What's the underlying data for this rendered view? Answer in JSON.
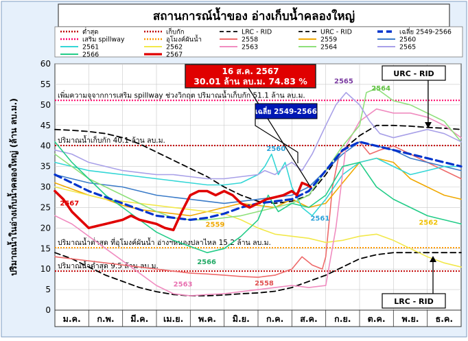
{
  "chart_data": {
    "type": "line",
    "title": "สถานการณ์น้ำของ อ่างเก็บน้ำคลองใหญ่",
    "ylabel": "ปริมาณน้ำในอ่างเก็บน้ำคลองใหญ่ (ล้าน ลบ.ม.)",
    "xlabel": "",
    "ylim": [
      0,
      60
    ],
    "yticks": [
      0,
      5,
      10,
      15,
      20,
      25,
      30,
      35,
      40,
      45,
      50,
      55,
      60
    ],
    "categories": [
      "ม.ค.",
      "ก.พ.",
      "มี.ค.",
      "เม.ย.",
      "พ.ค.",
      "มิ.ย.",
      "ก.ค.",
      "ส.ค.",
      "ก.ย.",
      "ต.ค.",
      "พ.ย.",
      "ธ.ค."
    ],
    "grid": true,
    "legend_position": "top",
    "legend": [
      {
        "label": "ต่ำสุด",
        "color": "#c00000",
        "style": "dotted"
      },
      {
        "label": "เก็บกัก",
        "color": "#c00000",
        "style": "dotted"
      },
      {
        "label": "LRC - RID",
        "color": "#000000",
        "style": "dashed"
      },
      {
        "label": "URC - RID",
        "color": "#000000",
        "style": "dashed"
      },
      {
        "label": "เฉลี่ย 2549-2566",
        "color": "#0033cc",
        "style": "dashed-thick"
      },
      {
        "label": "เสริม spillway",
        "color": "#ff0066",
        "style": "dotted"
      },
      {
        "label": "อุโมงค์ผันน้ำ",
        "color": "#ff9900",
        "style": "dotted"
      },
      {
        "label": "2558",
        "color": "#ee6a6a",
        "style": "solid"
      },
      {
        "label": "2559",
        "color": "#f0a800",
        "style": "solid"
      },
      {
        "label": "2560",
        "color": "#3a7bc8",
        "style": "solid"
      },
      {
        "label": "2561",
        "color": "#33d6d6",
        "style": "solid"
      },
      {
        "label": "2562",
        "color": "#f2e84a",
        "style": "solid"
      },
      {
        "label": "2563",
        "color": "#f08cc0",
        "style": "solid"
      },
      {
        "label": "2564",
        "color": "#8ee07a",
        "style": "solid"
      },
      {
        "label": "2565",
        "color": "#a8a0e8",
        "style": "solid"
      },
      {
        "label": "2566",
        "color": "#22cc88",
        "style": "solid"
      },
      {
        "label": "2567",
        "color": "#e00000",
        "style": "solid-thick"
      }
    ],
    "reference_lines": [
      {
        "value": 51.1,
        "label": "เพิ่มความจุจากการเสริม spillway ช่วงวิกฤต ปริมาณน้ำเก็บกัก 51.1 ล้าน ลบ.ม.",
        "color": "#ff0066"
      },
      {
        "value": 40.1,
        "label": "ปริมาณน้ำเก็บกัก 40.1 ล้าน ลบ.ม.",
        "color": "#c00000"
      },
      {
        "value": 15.2,
        "label": "ปริมาณน้ำต่ำสุด ที่อุโมงค์ผันน้ำ อ่างฯหนองปลาไหล 15.2 ล้าน ลบ.ม.",
        "color": "#ff9900"
      },
      {
        "value": 9.5,
        "label": "ปริมาณน้ำต่ำสุด 9.5 ล้าน ลบ.ม.",
        "color": "#c00000"
      }
    ],
    "series": [
      {
        "name": "URC - RID",
        "color": "#000000",
        "dash": "8,5",
        "width": 1.8,
        "x": [
          0,
          0.5,
          1,
          1.5,
          2,
          2.5,
          3,
          3.5,
          4,
          4.5,
          5,
          5.5,
          6,
          6.5,
          7,
          7.5,
          8,
          8.5,
          9,
          9.5,
          10,
          10.5,
          11,
          11.5,
          12
        ],
        "y": [
          44,
          43.8,
          43.5,
          43,
          42,
          40.5,
          38.5,
          36.5,
          34.5,
          32.5,
          30,
          28,
          26.5,
          26,
          26.5,
          28,
          33,
          39,
          42.5,
          45,
          45,
          44.8,
          44.5,
          44.3,
          44
        ]
      },
      {
        "name": "LRC - RID",
        "color": "#000000",
        "dash": "8,5",
        "width": 1.8,
        "x": [
          0,
          0.5,
          1,
          1.5,
          2,
          2.5,
          3,
          3.5,
          4,
          4.5,
          5,
          5.5,
          6,
          6.5,
          7,
          7.5,
          8,
          8.5,
          9,
          9.5,
          10,
          10.5,
          11,
          11.5,
          12
        ],
        "y": [
          14,
          12.5,
          10.5,
          8.5,
          7,
          5.5,
          4.5,
          3.8,
          3.5,
          3.5,
          3.7,
          4,
          4.2,
          4.6,
          5.5,
          7,
          8.5,
          10.5,
          12.5,
          13.5,
          14,
          14,
          14,
          14,
          14
        ]
      },
      {
        "name": "2558",
        "color": "#ee6a6a",
        "width": 1.6,
        "x": [
          0,
          0.5,
          1,
          1.5,
          2,
          2.5,
          3,
          3.5,
          4,
          4.5,
          5,
          5.5,
          6,
          6.5,
          7,
          7.3,
          7.6,
          7.9,
          8,
          8.2,
          8.4,
          8.7,
          9,
          9.3,
          9.6,
          10,
          10.5,
          11,
          11.5,
          12
        ],
        "y": [
          13,
          12.5,
          12,
          11.5,
          11,
          10.5,
          10,
          9.5,
          9,
          8.8,
          8.5,
          8.2,
          8,
          8.5,
          10,
          13,
          11,
          10,
          13,
          30,
          38,
          40,
          41,
          38,
          39,
          40,
          38,
          36,
          34,
          32
        ]
      },
      {
        "name": "2559",
        "color": "#f0a800",
        "width": 1.6,
        "x": [
          0,
          0.5,
          1,
          1.5,
          2,
          2.5,
          3,
          3.5,
          4,
          4.5,
          5,
          5.5,
          6,
          6.5,
          7,
          7.5,
          8,
          8.5,
          9,
          9.5,
          10,
          10.5,
          11,
          11.5,
          12
        ],
        "y": [
          31,
          29.5,
          28,
          27,
          25.5,
          24.5,
          24,
          23.5,
          23,
          24,
          25,
          26,
          25.5,
          25,
          27,
          25,
          26,
          31,
          36,
          37,
          36,
          32,
          30,
          28,
          27
        ]
      },
      {
        "name": "2560",
        "color": "#3a7bc8",
        "width": 1.6,
        "x": [
          0,
          0.5,
          1,
          1.5,
          2,
          2.5,
          3,
          3.5,
          4,
          4.5,
          5,
          5.5,
          6,
          6.5,
          7,
          7.5,
          8,
          8.5,
          9,
          9.5,
          10,
          10.5,
          11,
          11.5,
          12
        ],
        "y": [
          33,
          32,
          31,
          30.5,
          30,
          29,
          28,
          27.5,
          27,
          26.5,
          26,
          26.5,
          27,
          27.5,
          28,
          30,
          34,
          38,
          41,
          40,
          39,
          37,
          36,
          35,
          34
        ]
      },
      {
        "name": "2561",
        "color": "#33d6d6",
        "width": 1.6,
        "x": [
          0,
          0.5,
          1,
          1.5,
          2,
          2.5,
          3,
          3.5,
          4,
          4.5,
          5,
          5.5,
          6,
          6.2,
          6.4,
          6.6,
          6.8,
          7,
          7.3,
          7.6,
          8,
          8.5,
          9,
          9.5,
          10,
          10.5,
          11,
          11.5,
          12
        ],
        "y": [
          36,
          35,
          34,
          33.5,
          33,
          32.5,
          32,
          31.5,
          31,
          30.5,
          30.5,
          31,
          33,
          35,
          38,
          33,
          36,
          30,
          25,
          23,
          27,
          33,
          36,
          37,
          35,
          33,
          34,
          35,
          35
        ]
      },
      {
        "name": "2562",
        "color": "#f2e84a",
        "width": 1.6,
        "x": [
          0,
          0.5,
          1,
          1.5,
          2,
          2.5,
          3,
          3.5,
          4,
          4.5,
          5,
          5.5,
          6,
          6.5,
          7,
          7.5,
          8,
          8.5,
          9,
          9.5,
          10,
          10.5,
          11,
          11.5,
          12
        ],
        "y": [
          30,
          29,
          28,
          27,
          26.5,
          26,
          25.5,
          25,
          24.5,
          24,
          23.5,
          22,
          20,
          18.5,
          18,
          17.5,
          16.5,
          17,
          18,
          18.5,
          17,
          15,
          13,
          11.5,
          10.5
        ]
      },
      {
        "name": "2563",
        "color": "#f08cc0",
        "width": 1.6,
        "x": [
          0,
          0.5,
          1,
          1.5,
          2,
          2.5,
          3,
          3.5,
          4,
          4.5,
          5,
          5.5,
          6,
          6.5,
          7,
          7.5,
          8,
          8.3,
          8.6,
          9,
          9.5,
          10,
          10.5,
          11,
          11.5,
          12
        ],
        "y": [
          23,
          21,
          18,
          15,
          12,
          9,
          6,
          4,
          3.5,
          3.8,
          4,
          4.5,
          5,
          5.5,
          6,
          5.5,
          6,
          20,
          40,
          46,
          49,
          48,
          48,
          47,
          45,
          42
        ]
      },
      {
        "name": "2564",
        "color": "#8ee07a",
        "width": 1.6,
        "x": [
          0,
          0.5,
          1,
          1.5,
          2,
          2.5,
          3,
          3.5,
          4,
          4.5,
          5,
          5.5,
          6,
          6.5,
          7,
          7.5,
          8,
          8.5,
          9,
          9.2,
          9.5,
          10,
          10.5,
          11,
          11.5,
          12
        ],
        "y": [
          38,
          35,
          32,
          30,
          28,
          26,
          24,
          22.5,
          22,
          22,
          22.5,
          23,
          24,
          25,
          26,
          28,
          34,
          40,
          45,
          53,
          54,
          51,
          50,
          48,
          46,
          41
        ]
      },
      {
        "name": "2565",
        "color": "#a8a0e8",
        "width": 1.6,
        "x": [
          0,
          0.5,
          1,
          1.5,
          2,
          2.5,
          3,
          3.5,
          4,
          4.5,
          5,
          5.5,
          6,
          6.2,
          6.5,
          6.8,
          7,
          7.3,
          7.6,
          8,
          8.3,
          8.6,
          9,
          9.3,
          9.6,
          10,
          10.5,
          11,
          11.5,
          12
        ],
        "y": [
          39,
          38,
          36,
          35,
          34,
          33.5,
          33,
          33,
          32.5,
          32,
          32,
          32.5,
          33,
          34,
          33,
          35,
          36,
          34,
          38,
          45,
          50,
          53,
          50,
          46,
          43,
          42,
          43,
          44,
          43,
          41
        ]
      },
      {
        "name": "2566",
        "color": "#22cc88",
        "width": 1.6,
        "x": [
          0,
          0.5,
          1,
          1.5,
          2,
          2.5,
          3,
          3.5,
          4,
          4.5,
          5,
          5.5,
          6,
          6.3,
          6.6,
          7,
          7.5,
          8,
          8.5,
          9,
          9.5,
          10,
          10.5,
          11,
          11.5,
          12
        ],
        "y": [
          41,
          36,
          32,
          28,
          25,
          22,
          19,
          17,
          15.5,
          14,
          15,
          18,
          22,
          28,
          24,
          26,
          25,
          28,
          35,
          36,
          30,
          27,
          25,
          23,
          22,
          21
        ]
      },
      {
        "name": "เฉลี่ย 2549-2566",
        "color": "#0033cc",
        "dash": "10,6",
        "width": 3.2,
        "x": [
          0,
          0.5,
          1,
          1.5,
          2,
          2.5,
          3,
          3.5,
          4,
          4.5,
          5,
          5.5,
          6,
          6.5,
          7,
          7.5,
          8,
          8.5,
          9,
          9.5,
          10,
          10.5,
          11,
          11.5,
          12
        ],
        "y": [
          33,
          31,
          29,
          27.5,
          26,
          24.5,
          23,
          22.5,
          22,
          22.5,
          23.5,
          25,
          26,
          26.5,
          27,
          29,
          34,
          39,
          41,
          40,
          39,
          38,
          37,
          36,
          35
        ]
      },
      {
        "name": "2567",
        "color": "#e00000",
        "width": 3.6,
        "x": [
          0,
          0.25,
          0.5,
          0.75,
          1,
          1.25,
          1.5,
          1.75,
          2,
          2.25,
          2.5,
          2.75,
          3,
          3.25,
          3.5,
          3.75,
          4,
          4.25,
          4.5,
          4.75,
          5,
          5.25,
          5.5,
          5.75,
          6,
          6.25,
          6.5,
          6.75,
          7,
          7.15,
          7.3,
          7.45,
          7.55
        ],
        "y": [
          29,
          27,
          24,
          22,
          20,
          20.5,
          21,
          21.5,
          22,
          23,
          22,
          21.5,
          21,
          20,
          19.5,
          24,
          28,
          29,
          29,
          28,
          29,
          28,
          26,
          25,
          26,
          27,
          27.5,
          28,
          29,
          28,
          31,
          30.5,
          30.01
        ]
      }
    ],
    "annotations": {
      "current_box": {
        "line1": "16 ส.ค. 2567",
        "line2": "30.01 ล้าน ลบ.ม. 74.83 %"
      },
      "avg_box": "เฉลี่ย 2549-2566",
      "urc_box": "URC - RID",
      "lrc_box": "LRC - RID",
      "year_labels": [
        {
          "text": "2567",
          "x": 0.15,
          "y": 25.5,
          "color": "#e00000"
        },
        {
          "text": "2565",
          "x": 8.25,
          "y": 55.2,
          "color": "#7a3aa0"
        },
        {
          "text": "2564",
          "x": 9.35,
          "y": 53.5,
          "color": "#5fc040"
        },
        {
          "text": "2560",
          "x": 6.25,
          "y": 38.8,
          "color": "#2aa0d8"
        },
        {
          "text": "2559",
          "x": 4.45,
          "y": 20.3,
          "color": "#f0a800"
        },
        {
          "text": "2561",
          "x": 7.55,
          "y": 21.8,
          "color": "#2aa0d8"
        },
        {
          "text": "2562",
          "x": 10.75,
          "y": 20.8,
          "color": "#f0c000"
        },
        {
          "text": "2566",
          "x": 4.2,
          "y": 11.2,
          "color": "#22aa66"
        },
        {
          "text": "2563",
          "x": 3.5,
          "y": 5.8,
          "color": "#e870b0"
        },
        {
          "text": "2558",
          "x": 5.9,
          "y": 6.0,
          "color": "#e05050"
        }
      ]
    }
  }
}
